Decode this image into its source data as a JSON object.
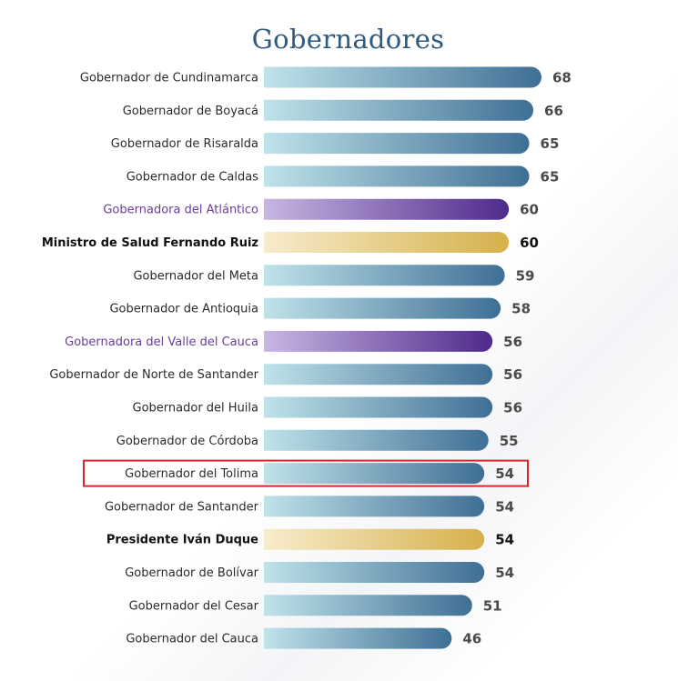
{
  "chart_data": {
    "type": "bar",
    "orientation": "horizontal",
    "title": "Gobernadores",
    "categories": [
      "Gobernador de Cundinamarca",
      "Gobernador de Boyacá",
      "Gobernador de Risaralda",
      "Gobernador de Caldas",
      "Gobernadora del Atlántico",
      "Ministro de Salud Fernando Ruiz",
      "Gobernador del Meta",
      "Gobernador de Antioquia",
      "Gobernadora del Valle del Cauca",
      "Gobernador de Norte de Santander",
      "Gobernador del Huila",
      "Gobernador de Córdoba",
      "Gobernador del Tolima",
      "Gobernador de Santander",
      "Presidente Iván Duque",
      "Gobernador de Bolívar",
      "Gobernador del Cesar",
      "Gobernador del Cauca"
    ],
    "values": [
      68,
      66,
      65,
      65,
      60,
      60,
      59,
      58,
      56,
      56,
      56,
      55,
      54,
      54,
      54,
      54,
      51,
      46
    ],
    "bar_styles": [
      "blue",
      "blue",
      "blue",
      "blue",
      "purple",
      "gold",
      "blue",
      "blue",
      "purple",
      "blue",
      "blue",
      "blue",
      "blue",
      "blue",
      "gold",
      "blue",
      "blue",
      "blue"
    ],
    "highlighted_category": "Gobernador del Tolima",
    "xlim": [
      0,
      68
    ],
    "grid": false,
    "legend": "none"
  },
  "colors": {
    "title": "#2f5a80",
    "blue_start": "#bfe3ea",
    "blue_end": "#3f6f95",
    "purple_start": "#c9b6e2",
    "purple_end": "#4e2a8c",
    "gold_start": "#f7eccc",
    "gold_end": "#d6b04a",
    "highlight_box": "#d9262b",
    "purple_text": "#6a3d9a"
  }
}
